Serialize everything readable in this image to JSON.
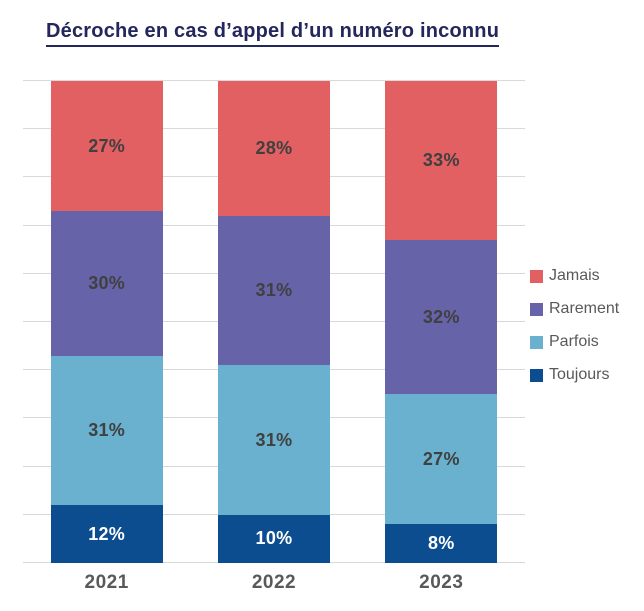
{
  "title": "Décroche en cas d’appel d’un numéro inconnu",
  "colors": {
    "title": "#23275B",
    "gridline": "#D9D9D9",
    "axis_label": "#595959",
    "value_label_dark": "#404040",
    "value_label_light": "#FFFFFF"
  },
  "chart_data": {
    "type": "bar",
    "stacked": true,
    "title": "Décroche en cas d’appel d’un numéro inconnu",
    "categories": [
      "2021",
      "2022",
      "2023"
    ],
    "series": [
      {
        "name": "Toujours",
        "color": "#0B4D8E",
        "label_color": "#FFFFFF",
        "values": [
          12,
          10,
          8
        ]
      },
      {
        "name": "Parfois",
        "color": "#69B1CE",
        "label_color": "#404040",
        "values": [
          31,
          31,
          27
        ]
      },
      {
        "name": "Rarement",
        "color": "#6663A9",
        "label_color": "#404040",
        "values": [
          30,
          31,
          32
        ]
      },
      {
        "name": "Jamais",
        "color": "#E25F62",
        "label_color": "#404040",
        "values": [
          27,
          28,
          33
        ]
      }
    ],
    "legend": [
      "Jamais",
      "Rarement",
      "Parfois",
      "Toujours"
    ],
    "legend_position": "right",
    "xlabel": "",
    "ylabel": "",
    "ylim": [
      0,
      100
    ],
    "gridline_step": 10,
    "grid": true,
    "value_suffix": "%"
  }
}
